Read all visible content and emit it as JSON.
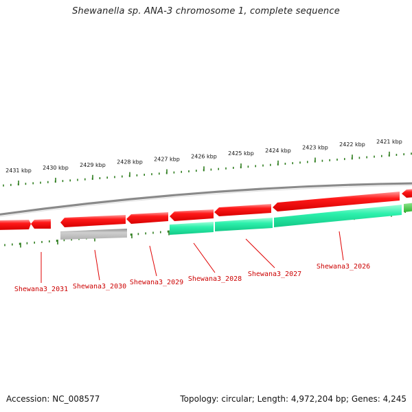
{
  "title": "Shewanella sp. ANA-3 chromosome 1, complete sequence",
  "footer": {
    "accession": "Accession: NC_008577",
    "stats": "Topology: circular; Length: 4,972,204 bp; Genes: 4,245"
  },
  "ruler": {
    "tick_labels": [
      "2431 kbp",
      "2430 kbp",
      "2429 kbp",
      "2428 kbp",
      "2427 kbp",
      "2426 kbp",
      "2425 kbp",
      "2424 kbp",
      "2423 kbp",
      "2422 kbp",
      "2421 kbp"
    ]
  },
  "genes": [
    {
      "label": "Shewana3_2031"
    },
    {
      "label": "Shewana3_2030"
    },
    {
      "label": "Shewana3_2029"
    },
    {
      "label": "Shewana3_2028"
    },
    {
      "label": "Shewana3_2027"
    },
    {
      "label": "Shewana3_2026"
    }
  ],
  "colors": {
    "cds_forward": "#ff0000",
    "cds_highlight": "#ff9a9a",
    "rna_teal": "#20e6a2",
    "pseudo_gray": "#b4b4b4",
    "green_feature": "#3cc83c",
    "backbone": "#8a8a8a",
    "tick_green": "#2e7d1e",
    "label_red": "#cc0000"
  }
}
